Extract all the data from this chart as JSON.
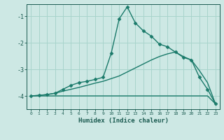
{
  "xlabel": "Humidex (Indice chaleur)",
  "bg_color": "#cde8e4",
  "grid_color": "#a8d4cc",
  "line_color": "#1a7a6a",
  "x_ticks": [
    0,
    1,
    2,
    3,
    4,
    5,
    6,
    7,
    8,
    9,
    10,
    11,
    12,
    13,
    14,
    15,
    16,
    17,
    18,
    19,
    20,
    21,
    22,
    23
  ],
  "ylim": [
    -4.5,
    -0.55
  ],
  "y_ticks": [
    -4,
    -3,
    -2,
    -1
  ],
  "series": [
    {
      "x": [
        0,
        1,
        2,
        3,
        4,
        5,
        6,
        7,
        8,
        9,
        10,
        11,
        12,
        13,
        14,
        15,
        16,
        17,
        18,
        19,
        20,
        21,
        22,
        23
      ],
      "y": [
        -4.0,
        -4.0,
        -4.0,
        -4.0,
        -4.0,
        -4.0,
        -4.0,
        -4.0,
        -4.0,
        -4.0,
        -4.0,
        -4.0,
        -4.0,
        -4.0,
        -4.0,
        -4.0,
        -4.0,
        -4.0,
        -4.0,
        -4.0,
        -4.0,
        -4.0,
        -4.0,
        -4.3
      ],
      "marker": null,
      "linewidth": 1.0
    },
    {
      "x": [
        0,
        1,
        2,
        3,
        4,
        5,
        6,
        7,
        8,
        9,
        10,
        11,
        12,
        13,
        14,
        15,
        16,
        17,
        18,
        19,
        20,
        21,
        22,
        23
      ],
      "y": [
        -4.0,
        -3.98,
        -3.95,
        -3.9,
        -3.82,
        -3.75,
        -3.68,
        -3.6,
        -3.52,
        -3.45,
        -3.35,
        -3.25,
        -3.1,
        -2.95,
        -2.8,
        -2.65,
        -2.52,
        -2.42,
        -2.35,
        -2.52,
        -2.65,
        -3.05,
        -3.5,
        -4.3
      ],
      "marker": null,
      "linewidth": 1.0
    },
    {
      "x": [
        0,
        1,
        2,
        3,
        4,
        5,
        6,
        7,
        8,
        9,
        10,
        11,
        12,
        13,
        14,
        15,
        16,
        17,
        18,
        19,
        20,
        21,
        22,
        23
      ],
      "y": [
        -4.0,
        -3.98,
        -3.95,
        -3.9,
        -3.75,
        -3.6,
        -3.5,
        -3.45,
        -3.38,
        -3.3,
        -2.4,
        -1.1,
        -0.65,
        -1.25,
        -1.55,
        -1.75,
        -2.05,
        -2.15,
        -2.35,
        -2.55,
        -2.65,
        -3.3,
        -3.75,
        -4.3
      ],
      "marker": "D",
      "markersize": 2.5,
      "linewidth": 1.0
    }
  ]
}
